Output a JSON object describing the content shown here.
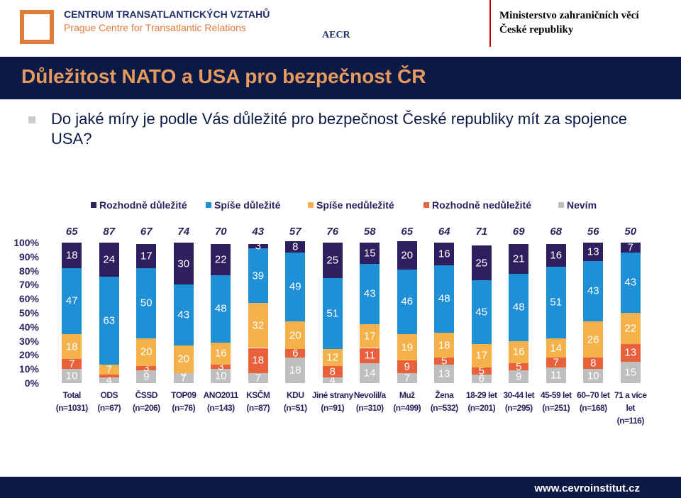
{
  "header": {
    "logo1_line1": "CENTRUM TRANSATLANTICKÝCH VZTAHŮ",
    "logo1_line2": "Prague Centre for Transatlantic Relations",
    "logo2": "AECR",
    "logo3_line1": "Ministerstvo zahraničních věcí",
    "logo3_line2": "České republiky"
  },
  "slide_title": "Důležitost NATO a USA pro bezpečnost ČR",
  "question": "Do jaké míry je podle Vás důležité pro bezpečnost České republiky mít za spojence USA?",
  "footer": "www.cevroinstitut.cz",
  "chart_data": {
    "type": "stacked_bar",
    "categories": [
      "Total",
      "ODS",
      "ČSSD",
      "TOP09",
      "ANO2011",
      "KSČM",
      "KDU",
      "Jiné strany",
      "Nevolil/a",
      "Muž",
      "Žena",
      "18-29 let",
      "30-44 let",
      "45-59 let",
      "60–70 let",
      "71 a více let"
    ],
    "sample_sizes": [
      "(n=1031)",
      "(n=67)",
      "(n=206)",
      "(n=76)",
      "(n=143)",
      "(n=87)",
      "(n=51)",
      "(n=91)",
      "(n=310)",
      "(n=499)",
      "(n=532)",
      "(n=201)",
      "(n=295)",
      "(n=251)",
      "(n=168)",
      "(n=116)"
    ],
    "top_labels": [
      65,
      87,
      67,
      74,
      70,
      43,
      57,
      76,
      58,
      65,
      64,
      71,
      69,
      68,
      56,
      50
    ],
    "ylim": [
      0,
      100
    ],
    "yticks": [
      {
        "value": 0,
        "label": "0%"
      },
      {
        "value": 10,
        "label": "10%"
      },
      {
        "value": 20,
        "label": "20%"
      },
      {
        "value": 30,
        "label": "30%"
      },
      {
        "value": 40,
        "label": "40%"
      },
      {
        "value": 50,
        "label": "50%"
      },
      {
        "value": 60,
        "label": "60%"
      },
      {
        "value": 70,
        "label": "70%"
      },
      {
        "value": 80,
        "label": "80%"
      },
      {
        "value": 90,
        "label": "90%"
      },
      {
        "value": 100,
        "label": "100%"
      }
    ],
    "legend_order": [
      4,
      3,
      2,
      1,
      0
    ],
    "series": [
      {
        "name": "Nevím",
        "color": "#bfbfbf",
        "values": [
          10,
          4,
          9,
          7,
          10,
          7,
          18,
          4,
          14,
          7,
          13,
          6,
          9,
          11,
          10,
          15
        ]
      },
      {
        "name": "Rozhodně nedůležité",
        "color": "#e8603c",
        "values": [
          7,
          2,
          3,
          0,
          3,
          18,
          6,
          8,
          11,
          9,
          5,
          5,
          5,
          7,
          8,
          13
        ],
        "value_labels": [
          7,
          null,
          3,
          0,
          3,
          18,
          6,
          8,
          11,
          9,
          5,
          5,
          5,
          7,
          8,
          13
        ]
      },
      {
        "name": "Spíše nedůležité",
        "color": "#f5b24a",
        "values": [
          18,
          7,
          20,
          20,
          16,
          32,
          20,
          12,
          17,
          19,
          18,
          17,
          16,
          14,
          26,
          22
        ]
      },
      {
        "name": "Spíše důležité",
        "color": "#1f8fd6",
        "values": [
          47,
          63,
          50,
          43,
          48,
          39,
          49,
          51,
          43,
          46,
          48,
          45,
          48,
          51,
          43,
          43
        ]
      },
      {
        "name": "Rozhodně důležité",
        "color": "#2e1f5e",
        "values": [
          18,
          24,
          17,
          30,
          22,
          3,
          8,
          25,
          15,
          20,
          16,
          25,
          21,
          16,
          13,
          7
        ]
      }
    ]
  }
}
